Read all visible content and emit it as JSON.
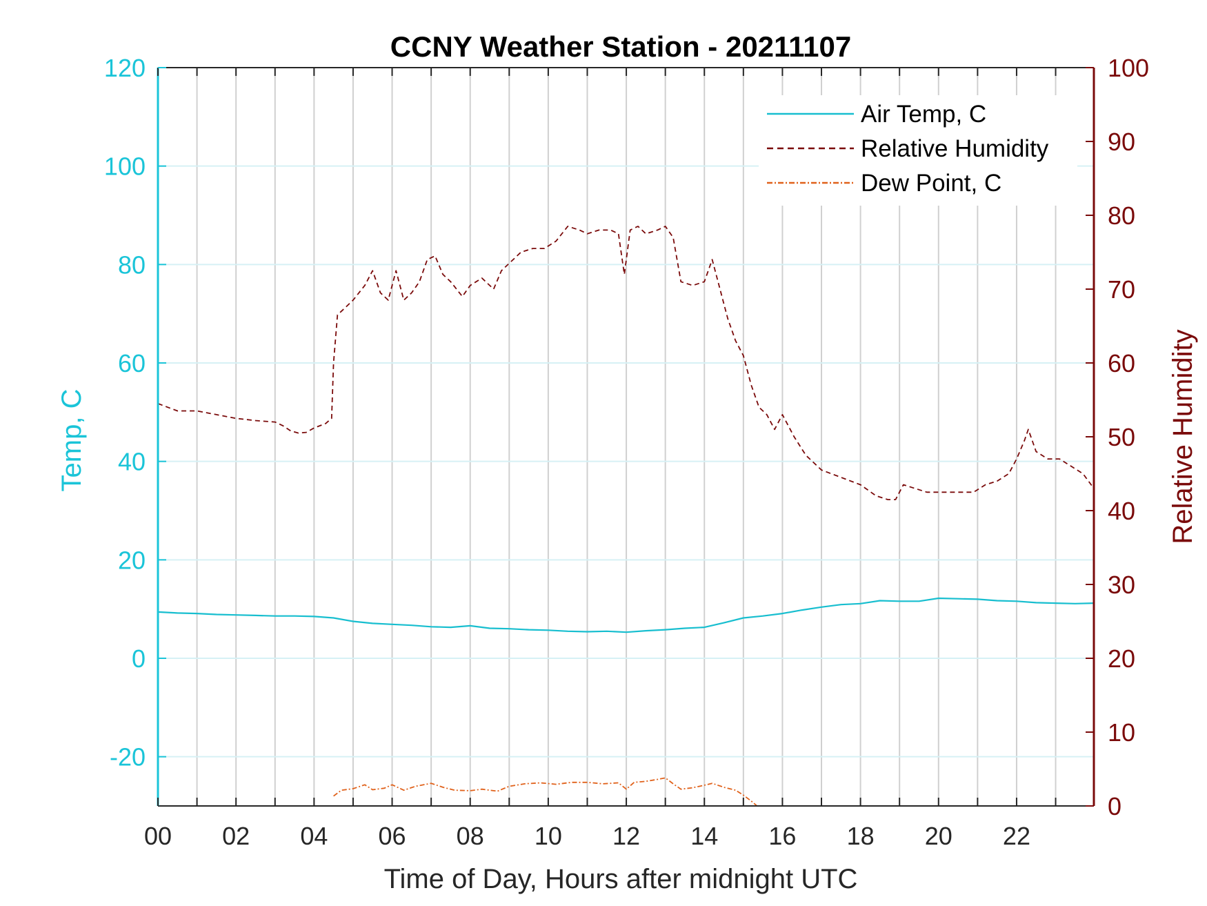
{
  "chart_data": {
    "type": "line",
    "title": "CCNY Weather Station - 20211107",
    "xlabel": "Time of Day, Hours after midnight UTC",
    "ylabel_left": "Temp, C",
    "ylabel_right": "Relative Humidity",
    "xlim": [
      0,
      23.98
    ],
    "ylim_left": [
      -30,
      120
    ],
    "ylim_right": [
      0,
      100
    ],
    "x_ticks": [
      0,
      2,
      4,
      6,
      8,
      10,
      12,
      14,
      16,
      18,
      20,
      22
    ],
    "x_tick_labels": [
      "00",
      "02",
      "04",
      "06",
      "08",
      "10",
      "12",
      "14",
      "16",
      "18",
      "20",
      "22"
    ],
    "y_left_ticks": [
      -20,
      0,
      20,
      40,
      60,
      80,
      100,
      120
    ],
    "y_left_tick_labels": [
      "-20",
      "0",
      "20",
      "40",
      "60",
      "80",
      "100",
      "120"
    ],
    "y_right_ticks": [
      0,
      10,
      20,
      30,
      40,
      50,
      60,
      70,
      80,
      90,
      100
    ],
    "y_right_tick_labels": [
      "0",
      "10",
      "20",
      "30",
      "40",
      "50",
      "60",
      "70",
      "80",
      "90",
      "100"
    ],
    "grid": "vertical every hour, horizontal at left ticks",
    "legend_position": "top-right",
    "colors": {
      "left_axis": "#1ac4d8",
      "right_axis": "#7a0a0a",
      "air_temp": "#17becf",
      "humidity": "#7a0a0a",
      "dew_point": "#e0611a",
      "grid": "#d0d0d0"
    },
    "series": [
      {
        "name": "Air Temp, C",
        "axis": "left",
        "style": "solid",
        "x": [
          0,
          0.5,
          1,
          1.5,
          2,
          2.5,
          3,
          3.5,
          4,
          4.5,
          5,
          5.5,
          6,
          6.5,
          7,
          7.5,
          8,
          8.5,
          9,
          9.5,
          10,
          10.5,
          11,
          11.5,
          12,
          12.5,
          13,
          13.5,
          14,
          14.5,
          15,
          15.5,
          16,
          16.5,
          17,
          17.5,
          18,
          18.5,
          19,
          19.5,
          20,
          20.5,
          21,
          21.5,
          22,
          22.5,
          23,
          23.5,
          23.98
        ],
        "y": [
          9.4,
          9.2,
          9.1,
          8.9,
          8.8,
          8.7,
          8.6,
          8.6,
          8.5,
          8.2,
          7.5,
          7.1,
          6.9,
          6.7,
          6.4,
          6.3,
          6.6,
          6.1,
          6.0,
          5.8,
          5.7,
          5.5,
          5.4,
          5.5,
          5.3,
          5.6,
          5.8,
          6.1,
          6.3,
          7.2,
          8.2,
          8.6,
          9.1,
          9.8,
          10.4,
          10.9,
          11.1,
          11.7,
          11.6,
          11.6,
          12.2,
          12.1,
          12.0,
          11.7,
          11.6,
          11.3,
          11.2,
          11.1,
          11.2
        ]
      },
      {
        "name": "Relative Humidity",
        "axis": "right",
        "style": "dashed",
        "x": [
          0,
          0.25,
          0.5,
          1,
          1.5,
          2,
          2.5,
          3,
          3.2,
          3.4,
          3.6,
          3.8,
          4.0,
          4.3,
          4.45,
          4.5,
          4.6,
          4.8,
          5.0,
          5.3,
          5.5,
          5.7,
          5.9,
          6.1,
          6.3,
          6.5,
          6.7,
          6.9,
          7.1,
          7.3,
          7.5,
          7.8,
          8.0,
          8.3,
          8.6,
          8.8,
          9.0,
          9.3,
          9.6,
          9.9,
          10.2,
          10.5,
          10.8,
          11.0,
          11.3,
          11.6,
          11.8,
          11.95,
          12.1,
          12.3,
          12.5,
          12.8,
          13.0,
          13.2,
          13.4,
          13.7,
          14.0,
          14.2,
          14.4,
          14.6,
          14.8,
          15.0,
          15.2,
          15.4,
          15.6,
          15.8,
          16.0,
          16.3,
          16.6,
          17.0,
          17.5,
          18.0,
          18.4,
          18.7,
          18.9,
          19.1,
          19.4,
          19.7,
          20.0,
          20.3,
          20.6,
          20.9,
          21.2,
          21.5,
          21.8,
          22.0,
          22.2,
          22.3,
          22.5,
          22.8,
          23.1,
          23.4,
          23.7,
          23.98
        ],
        "y": [
          54.5,
          54.0,
          53.5,
          53.5,
          53.0,
          52.5,
          52.2,
          52.0,
          51.5,
          50.8,
          50.5,
          50.6,
          51.2,
          51.8,
          52.5,
          60,
          66.5,
          67.5,
          68.5,
          70.5,
          72.5,
          69.5,
          68.5,
          72.5,
          68.5,
          69.5,
          71,
          74,
          74.5,
          72,
          71,
          69,
          70.5,
          71.5,
          70,
          72.5,
          73.5,
          75,
          75.5,
          75.5,
          76.5,
          78.5,
          78,
          77.5,
          78,
          78,
          77.5,
          72,
          78,
          78.5,
          77.5,
          78,
          78.5,
          77,
          71,
          70.5,
          71,
          74,
          70,
          66,
          63,
          61,
          57,
          54,
          53,
          51,
          53,
          50,
          47.5,
          45.5,
          44.5,
          43.5,
          42,
          41.5,
          41.5,
          43.5,
          43,
          42.5,
          42.5,
          42.5,
          42.5,
          42.5,
          43.5,
          44,
          45,
          47,
          49.5,
          51,
          48,
          47,
          47,
          46,
          45,
          43
        ]
      },
      {
        "name": "Dew Point, C",
        "axis": "left",
        "style": "dash-dot",
        "x": [
          4.5,
          4.7,
          5.0,
          5.3,
          5.5,
          5.8,
          6.0,
          6.3,
          6.6,
          7.0,
          7.3,
          7.6,
          8.0,
          8.3,
          8.7,
          9.0,
          9.4,
          9.8,
          10.2,
          10.6,
          11.0,
          11.4,
          11.8,
          12.0,
          12.2,
          12.5,
          12.8,
          13.0,
          13.2,
          13.4,
          13.7,
          14.0,
          14.2,
          14.5,
          14.8,
          15.0,
          15.2,
          15.35
        ],
        "y": [
          -28.0,
          -26.8,
          -26.5,
          -25.7,
          -26.7,
          -26.4,
          -25.7,
          -26.8,
          -26.0,
          -25.4,
          -26.2,
          -26.8,
          -26.9,
          -26.6,
          -27.0,
          -26.0,
          -25.5,
          -25.3,
          -25.6,
          -25.2,
          -25.2,
          -25.5,
          -25.3,
          -26.6,
          -25.2,
          -25.0,
          -24.6,
          -24.3,
          -25.5,
          -26.6,
          -26.3,
          -25.8,
          -25.4,
          -26.2,
          -26.8,
          -27.8,
          -29.0,
          -30.0
        ]
      }
    ]
  }
}
